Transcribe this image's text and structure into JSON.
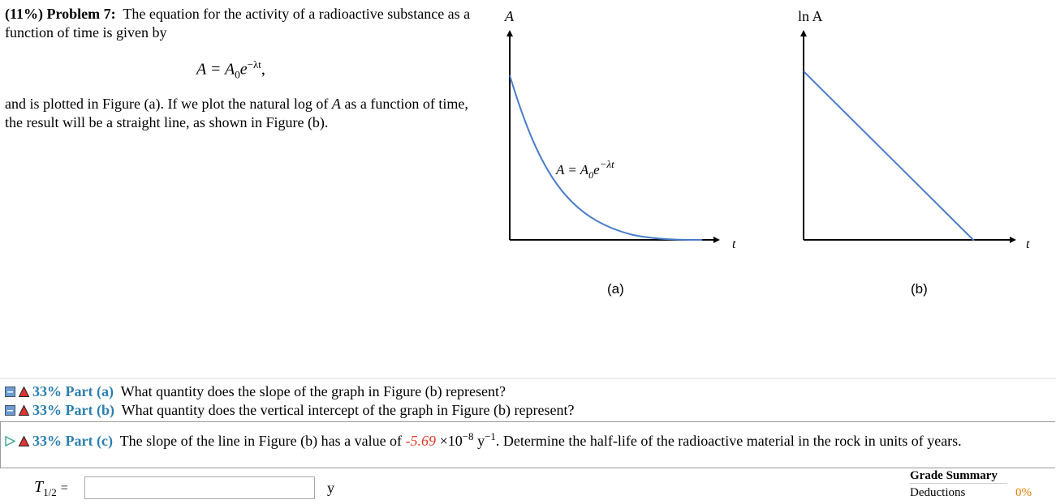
{
  "problem": {
    "header": "(11%) Problem 7:",
    "intro": "The equation for the activity of a radioactive substance as a function of time is given by",
    "equation": {
      "lhs": "A = A",
      "sub": "0",
      "base": "e",
      "exponent": "−λt",
      "end": ","
    },
    "after_1": "and is plotted in Figure (a). If we plot the natural log of",
    "after_var": "A",
    "after_2": "as a function of time, the result will be a straight line, as shown in Figure (b)."
  },
  "figures": [
    {
      "y_label": "A",
      "x_label": "t",
      "curve_label": "A = A",
      "curve_label_sub": "0",
      "curve_label_base": "e",
      "curve_label_exp": "−λt",
      "caption": "(a)"
    },
    {
      "y_label": "ln A",
      "x_label": "t",
      "caption": "(b)"
    }
  ],
  "parts": [
    {
      "percent": "33%",
      "label": "Part (a)",
      "question": "What quantity does the slope of the graph in Figure (b) represent?"
    },
    {
      "percent": "33%",
      "label": "Part (b)",
      "question": "What quantity does the vertical intercept of the graph in Figure (b) represent?"
    },
    {
      "percent": "33%",
      "label": "Part (c)",
      "question_1": "The slope of the line in Figure (b) has a value of",
      "value": "-5.69",
      "times": "×10",
      "exponent": "−8",
      "unit": "y",
      "unit_exp": "−1",
      "question_2": ". Determine the half-life of the radioactive material in the rock in units of years."
    }
  ],
  "answer": {
    "variable": "T",
    "variable_sub": "1/2",
    "equals": "=",
    "unit": "y"
  },
  "grade_summary": {
    "title": "Grade Summary",
    "deductions": "Deductions",
    "deductions_value": "0%"
  }
}
